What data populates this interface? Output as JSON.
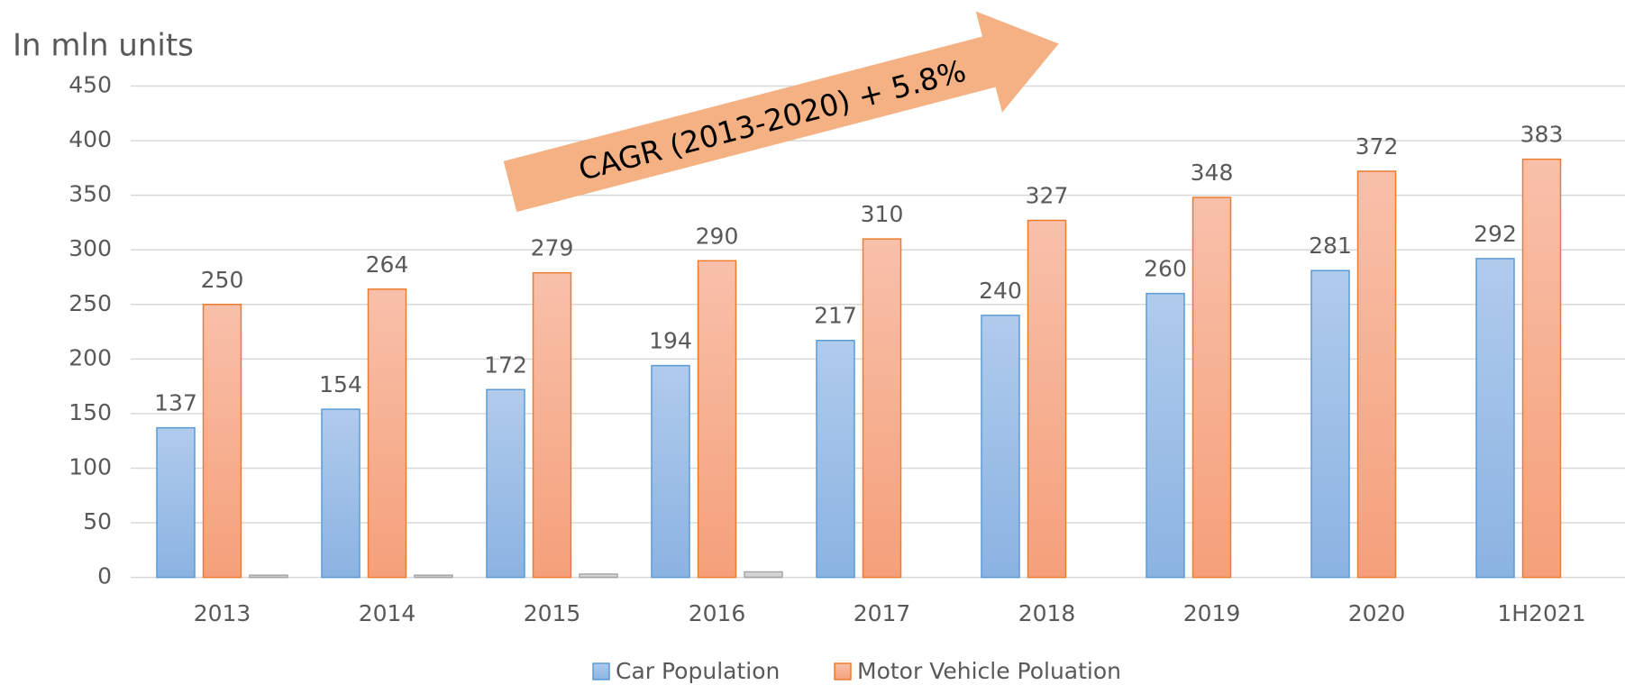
{
  "chart_data": {
    "type": "bar",
    "ylabel": "In mln units",
    "annotation": "CAGR (2013-2020)  + 5.8%",
    "categories": [
      "2013",
      "2014",
      "2015",
      "2016",
      "2017",
      "2018",
      "2019",
      "2020",
      "1H2021"
    ],
    "series": [
      {
        "name": "Car Population",
        "color": "#5b9bd5",
        "values": [
          137,
          154,
          172,
          194,
          217,
          240,
          260,
          281,
          292
        ]
      },
      {
        "name": "Motor Vehicle Poluation",
        "color": "#ed7d31",
        "values": [
          250,
          264,
          279,
          290,
          310,
          327,
          348,
          372,
          383
        ]
      },
      {
        "color": "#a5a5a5",
        "values": [
          2,
          2,
          3,
          5,
          null,
          null,
          null,
          null,
          null
        ]
      }
    ],
    "ylim": [
      0,
      450
    ],
    "yticks": [
      0,
      50,
      100,
      150,
      200,
      250,
      300,
      350,
      400,
      450
    ],
    "grid": true
  }
}
